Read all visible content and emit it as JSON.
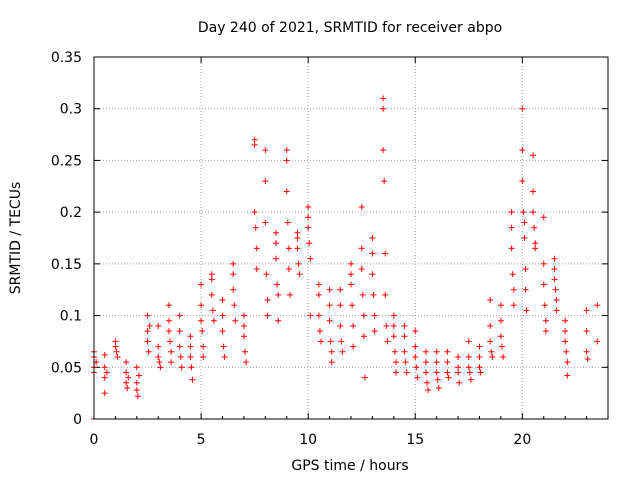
{
  "chart_data": {
    "type": "scatter",
    "title": "Day 240 of 2021, SRMTID for receiver abpo",
    "xlabel": "GPS time / hours",
    "ylabel": "SRMTID / TECUs",
    "xlim": [
      0,
      24
    ],
    "ylim": [
      0,
      0.35
    ],
    "xticks": [
      0,
      5,
      10,
      15,
      20
    ],
    "xtick_labels": [
      "0",
      "5",
      "10",
      "15",
      "20"
    ],
    "yticks": [
      0,
      0.05,
      0.1,
      0.15,
      0.2,
      0.25,
      0.3,
      0.35
    ],
    "ytick_labels": [
      "0",
      "0.05",
      "0.1",
      "0.15",
      "0.2",
      "0.25",
      "0.3",
      "0.35"
    ],
    "grid": true,
    "marker": "+",
    "color": "#ff0000",
    "series": [
      {
        "name": "SRMTID",
        "points": [
          [
            0.0,
            0.065
          ],
          [
            0.0,
            0.06
          ],
          [
            0.0,
            0.05
          ],
          [
            0.0,
            0.045
          ],
          [
            0.1,
            0.055
          ],
          [
            0.5,
            0.062
          ],
          [
            0.5,
            0.05
          ],
          [
            0.5,
            0.04
          ],
          [
            0.5,
            0.025
          ],
          [
            0.6,
            0.045
          ],
          [
            1.0,
            0.075
          ],
          [
            1.0,
            0.07
          ],
          [
            1.05,
            0.065
          ],
          [
            1.1,
            0.06
          ],
          [
            1.5,
            0.055
          ],
          [
            1.5,
            0.045
          ],
          [
            1.5,
            0.035
          ],
          [
            1.55,
            0.03
          ],
          [
            1.6,
            0.04
          ],
          [
            2.0,
            0.05
          ],
          [
            2.0,
            0.035
          ],
          [
            2.0,
            0.028
          ],
          [
            2.05,
            0.022
          ],
          [
            2.1,
            0.042
          ],
          [
            2.5,
            0.1
          ],
          [
            2.5,
            0.085
          ],
          [
            2.5,
            0.075
          ],
          [
            2.55,
            0.065
          ],
          [
            2.6,
            0.09
          ],
          [
            3.0,
            0.09
          ],
          [
            3.0,
            0.07
          ],
          [
            3.0,
            0.06
          ],
          [
            3.05,
            0.055
          ],
          [
            3.1,
            0.05
          ],
          [
            3.5,
            0.11
          ],
          [
            3.5,
            0.095
          ],
          [
            3.5,
            0.085
          ],
          [
            3.55,
            0.075
          ],
          [
            3.6,
            0.065
          ],
          [
            3.6,
            0.055
          ],
          [
            4.0,
            0.1
          ],
          [
            4.0,
            0.085
          ],
          [
            4.0,
            0.07
          ],
          [
            4.05,
            0.06
          ],
          [
            4.1,
            0.05
          ],
          [
            4.5,
            0.08
          ],
          [
            4.5,
            0.07
          ],
          [
            4.5,
            0.06
          ],
          [
            4.55,
            0.05
          ],
          [
            4.6,
            0.038
          ],
          [
            5.0,
            0.13
          ],
          [
            5.0,
            0.11
          ],
          [
            5.0,
            0.095
          ],
          [
            5.05,
            0.085
          ],
          [
            5.1,
            0.07
          ],
          [
            5.1,
            0.06
          ],
          [
            5.5,
            0.14
          ],
          [
            5.5,
            0.135
          ],
          [
            5.5,
            0.12
          ],
          [
            5.55,
            0.105
          ],
          [
            5.6,
            0.095
          ],
          [
            6.0,
            0.115
          ],
          [
            6.0,
            0.1
          ],
          [
            6.0,
            0.085
          ],
          [
            6.05,
            0.07
          ],
          [
            6.1,
            0.06
          ],
          [
            6.5,
            0.15
          ],
          [
            6.5,
            0.14
          ],
          [
            6.5,
            0.125
          ],
          [
            6.55,
            0.11
          ],
          [
            6.6,
            0.095
          ],
          [
            7.0,
            0.1
          ],
          [
            7.0,
            0.09
          ],
          [
            7.0,
            0.08
          ],
          [
            7.05,
            0.065
          ],
          [
            7.1,
            0.055
          ],
          [
            7.5,
            0.27
          ],
          [
            7.5,
            0.265
          ],
          [
            7.5,
            0.2
          ],
          [
            7.55,
            0.185
          ],
          [
            7.6,
            0.165
          ],
          [
            7.6,
            0.145
          ],
          [
            8.0,
            0.26
          ],
          [
            8.0,
            0.23
          ],
          [
            8.0,
            0.19
          ],
          [
            8.05,
            0.14
          ],
          [
            8.1,
            0.115
          ],
          [
            8.1,
            0.1
          ],
          [
            8.5,
            0.18
          ],
          [
            8.5,
            0.17
          ],
          [
            8.5,
            0.155
          ],
          [
            8.55,
            0.13
          ],
          [
            8.6,
            0.12
          ],
          [
            8.6,
            0.095
          ],
          [
            9.0,
            0.26
          ],
          [
            9.0,
            0.25
          ],
          [
            9.0,
            0.22
          ],
          [
            9.05,
            0.19
          ],
          [
            9.1,
            0.165
          ],
          [
            9.1,
            0.145
          ],
          [
            9.15,
            0.12
          ],
          [
            9.5,
            0.18
          ],
          [
            9.5,
            0.175
          ],
          [
            9.5,
            0.165
          ],
          [
            9.55,
            0.15
          ],
          [
            9.6,
            0.14
          ],
          [
            10.0,
            0.205
          ],
          [
            10.0,
            0.195
          ],
          [
            10.0,
            0.185
          ],
          [
            10.05,
            0.17
          ],
          [
            10.1,
            0.155
          ],
          [
            10.1,
            0.1
          ],
          [
            10.5,
            0.13
          ],
          [
            10.5,
            0.12
          ],
          [
            10.5,
            0.1
          ],
          [
            10.55,
            0.085
          ],
          [
            10.6,
            0.075
          ],
          [
            11.0,
            0.125
          ],
          [
            11.0,
            0.11
          ],
          [
            11.0,
            0.095
          ],
          [
            11.05,
            0.075
          ],
          [
            11.1,
            0.065
          ],
          [
            11.1,
            0.055
          ],
          [
            11.5,
            0.125
          ],
          [
            11.5,
            0.11
          ],
          [
            11.5,
            0.09
          ],
          [
            11.55,
            0.075
          ],
          [
            11.6,
            0.065
          ],
          [
            12.0,
            0.15
          ],
          [
            12.0,
            0.14
          ],
          [
            12.0,
            0.13
          ],
          [
            12.05,
            0.11
          ],
          [
            12.1,
            0.09
          ],
          [
            12.1,
            0.07
          ],
          [
            12.5,
            0.205
          ],
          [
            12.5,
            0.165
          ],
          [
            12.5,
            0.145
          ],
          [
            12.55,
            0.12
          ],
          [
            12.6,
            0.1
          ],
          [
            12.6,
            0.08
          ],
          [
            12.65,
            0.04
          ],
          [
            13.0,
            0.175
          ],
          [
            13.0,
            0.16
          ],
          [
            13.0,
            0.14
          ],
          [
            13.05,
            0.12
          ],
          [
            13.1,
            0.1
          ],
          [
            13.1,
            0.085
          ],
          [
            13.5,
            0.31
          ],
          [
            13.5,
            0.3
          ],
          [
            13.5,
            0.26
          ],
          [
            13.55,
            0.23
          ],
          [
            13.6,
            0.16
          ],
          [
            13.6,
            0.12
          ],
          [
            13.65,
            0.09
          ],
          [
            13.7,
            0.075
          ],
          [
            14.0,
            0.1
          ],
          [
            14.0,
            0.09
          ],
          [
            14.0,
            0.08
          ],
          [
            14.05,
            0.065
          ],
          [
            14.1,
            0.055
          ],
          [
            14.1,
            0.045
          ],
          [
            14.5,
            0.09
          ],
          [
            14.5,
            0.08
          ],
          [
            14.5,
            0.065
          ],
          [
            14.55,
            0.055
          ],
          [
            14.6,
            0.045
          ],
          [
            15.0,
            0.085
          ],
          [
            15.0,
            0.07
          ],
          [
            15.0,
            0.06
          ],
          [
            15.05,
            0.05
          ],
          [
            15.1,
            0.04
          ],
          [
            15.5,
            0.065
          ],
          [
            15.5,
            0.055
          ],
          [
            15.5,
            0.045
          ],
          [
            15.55,
            0.035
          ],
          [
            15.6,
            0.028
          ],
          [
            16.0,
            0.065
          ],
          [
            16.0,
            0.055
          ],
          [
            16.0,
            0.045
          ],
          [
            16.05,
            0.038
          ],
          [
            16.1,
            0.03
          ],
          [
            16.5,
            0.065
          ],
          [
            16.5,
            0.055
          ],
          [
            16.5,
            0.045
          ],
          [
            16.55,
            0.04
          ],
          [
            17.0,
            0.06
          ],
          [
            17.0,
            0.05
          ],
          [
            17.0,
            0.045
          ],
          [
            17.05,
            0.035
          ],
          [
            17.5,
            0.075
          ],
          [
            17.5,
            0.06
          ],
          [
            17.5,
            0.05
          ],
          [
            17.55,
            0.045
          ],
          [
            17.6,
            0.038
          ],
          [
            18.0,
            0.07
          ],
          [
            18.0,
            0.06
          ],
          [
            18.0,
            0.05
          ],
          [
            18.05,
            0.045
          ],
          [
            18.5,
            0.115
          ],
          [
            18.5,
            0.09
          ],
          [
            18.5,
            0.075
          ],
          [
            18.55,
            0.065
          ],
          [
            18.6,
            0.06
          ],
          [
            19.0,
            0.11
          ],
          [
            19.0,
            0.095
          ],
          [
            19.0,
            0.08
          ],
          [
            19.05,
            0.07
          ],
          [
            19.1,
            0.06
          ],
          [
            19.5,
            0.2
          ],
          [
            19.5,
            0.185
          ],
          [
            19.5,
            0.165
          ],
          [
            19.55,
            0.14
          ],
          [
            19.6,
            0.125
          ],
          [
            19.6,
            0.11
          ],
          [
            20.0,
            0.3
          ],
          [
            20.0,
            0.26
          ],
          [
            20.0,
            0.23
          ],
          [
            20.05,
            0.2
          ],
          [
            20.1,
            0.19
          ],
          [
            20.1,
            0.175
          ],
          [
            20.15,
            0.145
          ],
          [
            20.15,
            0.125
          ],
          [
            20.2,
            0.105
          ],
          [
            20.5,
            0.255
          ],
          [
            20.5,
            0.22
          ],
          [
            20.5,
            0.2
          ],
          [
            20.55,
            0.185
          ],
          [
            20.6,
            0.17
          ],
          [
            20.6,
            0.165
          ],
          [
            21.0,
            0.195
          ],
          [
            21.0,
            0.15
          ],
          [
            21.0,
            0.13
          ],
          [
            21.05,
            0.11
          ],
          [
            21.1,
            0.095
          ],
          [
            21.1,
            0.085
          ],
          [
            21.5,
            0.155
          ],
          [
            21.5,
            0.145
          ],
          [
            21.5,
            0.135
          ],
          [
            21.55,
            0.125
          ],
          [
            21.6,
            0.115
          ],
          [
            21.6,
            0.105
          ],
          [
            22.0,
            0.095
          ],
          [
            22.0,
            0.085
          ],
          [
            22.0,
            0.075
          ],
          [
            22.05,
            0.065
          ],
          [
            22.1,
            0.055
          ],
          [
            22.1,
            0.042
          ],
          [
            23.0,
            0.105
          ],
          [
            23.0,
            0.085
          ],
          [
            23.0,
            0.065
          ],
          [
            23.05,
            0.058
          ],
          [
            23.5,
            0.11
          ],
          [
            23.5,
            0.075
          ]
        ]
      }
    ],
    "zero_band": {
      "x_from": 0,
      "x_to": 23.5,
      "x_step": 0.25,
      "y": 0
    }
  }
}
